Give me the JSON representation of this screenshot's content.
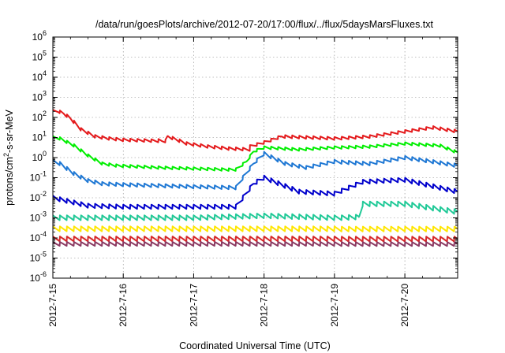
{
  "chart_data": {
    "type": "line",
    "title": "/data/run/goesPlots/archive/2012-07-20/17:00/flux/../flux/5daysMarsFluxes.txt",
    "xlabel": "Coordinated Universal Time (UTC)",
    "ylabel_main": "protons/cm",
    "ylabel_sup": "2",
    "ylabel_tail": "-s-sr-MeV",
    "y_scale": "log",
    "ylim_exponent": [
      -6,
      6
    ],
    "y_tick_base": "10",
    "y_tick_exponents": [
      "-6",
      "-5",
      "-4",
      "-3",
      "-2",
      "-1",
      "0",
      "1",
      "2",
      "3",
      "4",
      "5",
      "6"
    ],
    "x_tick_labels": [
      "2012-7-15",
      "2012-7-16",
      "2012-7-17",
      "2012-7-18",
      "2012-7-19",
      "2012-7-20"
    ],
    "xlim_days": [
      0,
      5.75
    ],
    "grid": "dotted",
    "legend": "none",
    "series": [
      {
        "color": "#e41a1c",
        "points": [
          [
            0.0,
            2.3
          ],
          [
            0.08,
            2.3
          ],
          [
            0.15,
            2.2
          ],
          [
            0.25,
            1.95
          ],
          [
            0.4,
            1.4
          ],
          [
            0.6,
            1.05
          ],
          [
            0.8,
            0.95
          ],
          [
            1.0,
            0.88
          ],
          [
            1.5,
            0.83
          ],
          [
            1.45,
            0.9
          ],
          [
            1.5,
            0.85
          ],
          [
            1.55,
            0.82
          ],
          [
            1.6,
            0.82
          ],
          [
            1.63,
            1.05
          ],
          [
            1.67,
            1.0
          ],
          [
            1.75,
            0.9
          ],
          [
            1.9,
            0.7
          ],
          [
            2.2,
            0.55
          ],
          [
            2.5,
            0.45
          ],
          [
            2.8,
            0.4
          ],
          [
            2.8,
            0.55
          ],
          [
            3.0,
            0.75
          ],
          [
            3.25,
            1.05
          ],
          [
            4.0,
            0.95
          ],
          [
            4.5,
            1.05
          ],
          [
            5.0,
            1.3
          ],
          [
            5.4,
            1.5
          ],
          [
            5.75,
            1.3
          ]
        ]
      },
      {
        "color": "#00ee00",
        "points": [
          [
            0.0,
            1.0
          ],
          [
            0.1,
            0.95
          ],
          [
            0.3,
            0.6
          ],
          [
            0.5,
            0.1
          ],
          [
            0.7,
            -0.3
          ],
          [
            0.9,
            -0.4
          ],
          [
            1.2,
            -0.45
          ],
          [
            1.5,
            -0.5
          ],
          [
            2.0,
            -0.55
          ],
          [
            2.5,
            -0.6
          ],
          [
            2.6,
            -0.6
          ],
          [
            2.75,
            -0.2
          ],
          [
            2.85,
            0.3
          ],
          [
            3.0,
            0.5
          ],
          [
            3.5,
            0.4
          ],
          [
            4.0,
            0.5
          ],
          [
            4.5,
            0.55
          ],
          [
            5.0,
            0.7
          ],
          [
            5.5,
            0.6
          ],
          [
            5.75,
            0.25
          ]
        ]
      },
      {
        "color": "#1f78d4",
        "points": [
          [
            0.0,
            -0.2
          ],
          [
            0.1,
            -0.3
          ],
          [
            0.3,
            -0.8
          ],
          [
            0.5,
            -1.15
          ],
          [
            0.7,
            -1.3
          ],
          [
            1.0,
            -1.35
          ],
          [
            1.5,
            -1.4
          ],
          [
            2.0,
            -1.45
          ],
          [
            2.6,
            -1.5
          ],
          [
            2.7,
            -1.0
          ],
          [
            2.85,
            -0.3
          ],
          [
            3.0,
            0.2
          ],
          [
            3.3,
            -0.3
          ],
          [
            3.6,
            -0.5
          ],
          [
            4.0,
            -0.2
          ],
          [
            4.5,
            -0.3
          ],
          [
            5.0,
            0.0
          ],
          [
            5.4,
            -0.2
          ],
          [
            5.75,
            -0.4
          ]
        ]
      },
      {
        "color": "#0000cc",
        "points": [
          [
            0.0,
            -2.0
          ],
          [
            0.5,
            -2.4
          ],
          [
            1.0,
            -2.45
          ],
          [
            1.5,
            -2.45
          ],
          [
            2.0,
            -2.45
          ],
          [
            2.6,
            -2.45
          ],
          [
            2.7,
            -2.0
          ],
          [
            2.85,
            -1.3
          ],
          [
            3.0,
            -1.0
          ],
          [
            3.5,
            -1.7
          ],
          [
            4.0,
            -1.8
          ],
          [
            4.4,
            -1.2
          ],
          [
            5.0,
            -1.1
          ],
          [
            5.75,
            -1.7
          ]
        ]
      },
      {
        "color": "#20c997",
        "points": [
          [
            0.0,
            -3.0
          ],
          [
            0.5,
            -3.0
          ],
          [
            1.0,
            -3.0
          ],
          [
            2.0,
            -3.0
          ],
          [
            3.0,
            -2.9
          ],
          [
            4.0,
            -3.0
          ],
          [
            4.35,
            -2.95
          ],
          [
            4.4,
            -2.3
          ],
          [
            5.0,
            -2.3
          ],
          [
            5.75,
            -2.7
          ]
        ]
      },
      {
        "color": "#ffe600",
        "points": [
          [
            0.0,
            -3.55
          ],
          [
            1.0,
            -3.55
          ],
          [
            2.0,
            -3.55
          ],
          [
            3.0,
            -3.55
          ],
          [
            4.0,
            -3.55
          ],
          [
            5.0,
            -3.55
          ],
          [
            5.75,
            -3.55
          ]
        ]
      },
      {
        "color": "#d62728",
        "points": [
          [
            0.0,
            -4.05
          ],
          [
            1.0,
            -4.05
          ],
          [
            2.0,
            -4.05
          ],
          [
            3.0,
            -4.05
          ],
          [
            4.0,
            -4.05
          ],
          [
            5.0,
            -4.05
          ],
          [
            5.75,
            -4.05
          ]
        ]
      },
      {
        "color": "#8b3a62",
        "points": [
          [
            0.0,
            -4.3
          ],
          [
            1.0,
            -4.3
          ],
          [
            2.0,
            -4.3
          ],
          [
            3.0,
            -4.3
          ],
          [
            4.0,
            -4.3
          ],
          [
            5.0,
            -4.3
          ],
          [
            5.75,
            -4.3
          ]
        ]
      }
    ]
  }
}
